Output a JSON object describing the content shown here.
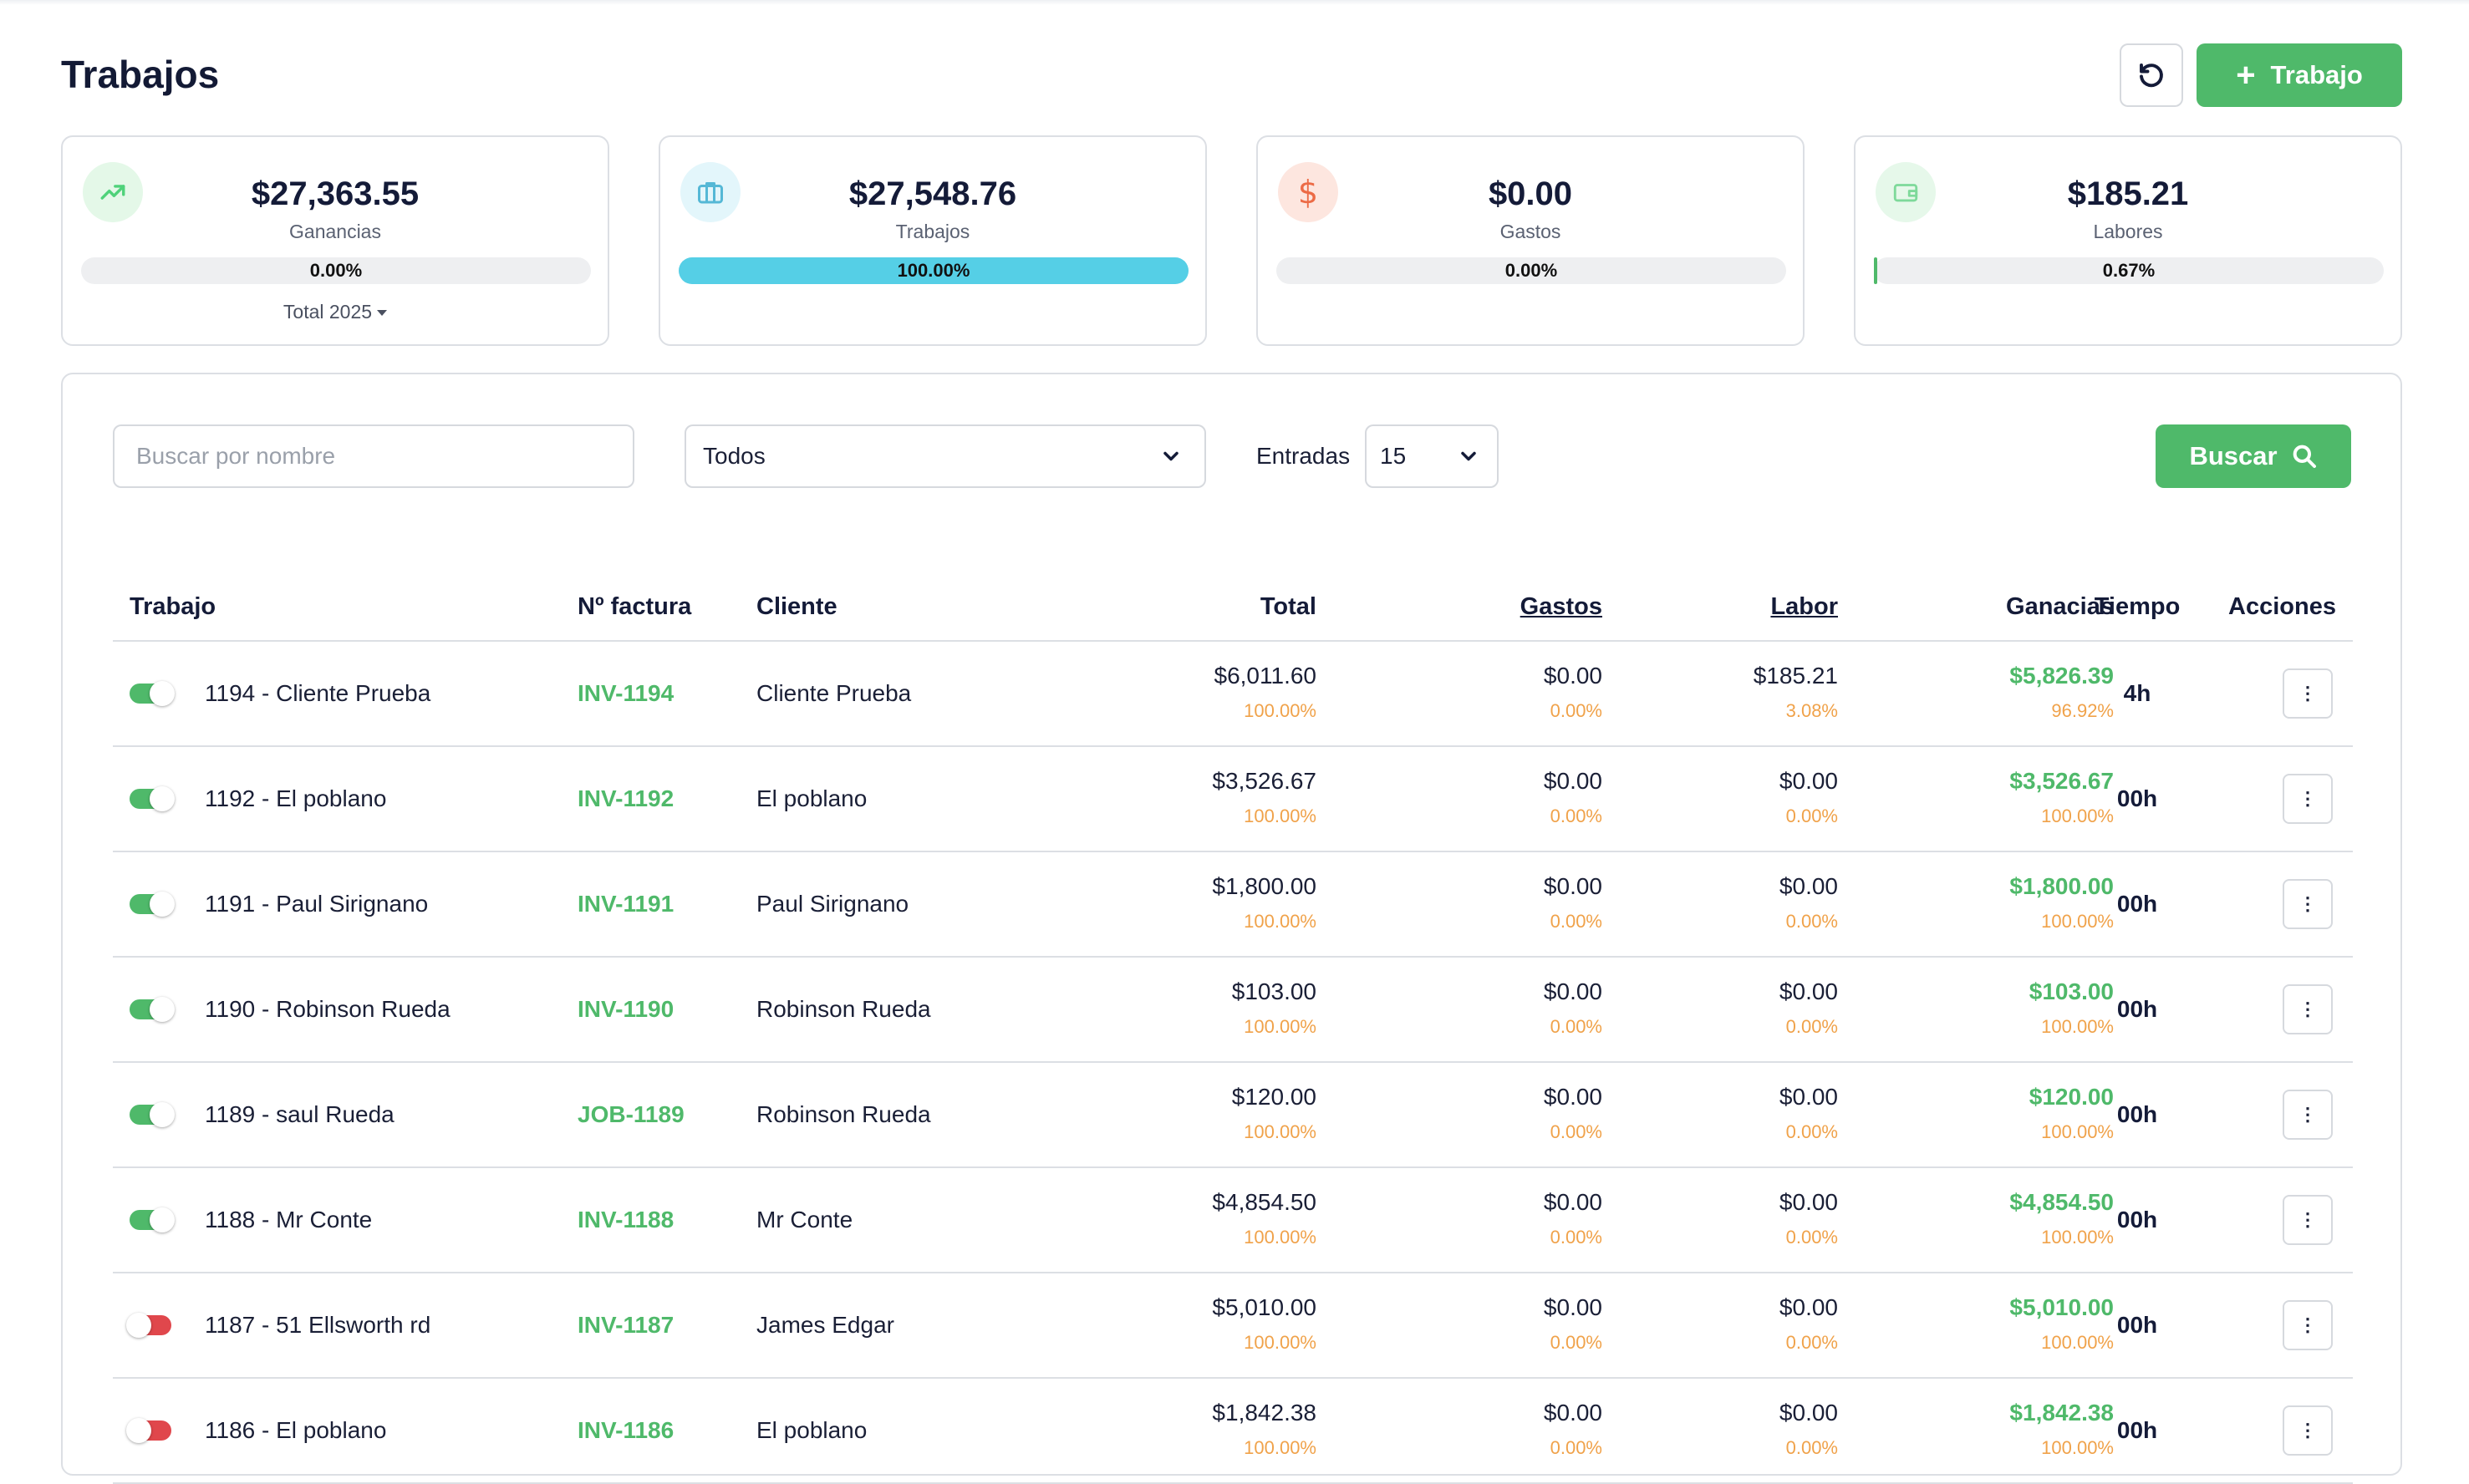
{
  "header": {
    "title": "Trabajos",
    "new_button_label": "Trabajo"
  },
  "colors": {
    "accent_green": "#4fb96a",
    "progress_cyan": "#55cfe6",
    "percent_orange": "#f0a24a",
    "toggle_off_red": "#e0474c"
  },
  "cards": [
    {
      "icon": "trending-up-icon",
      "value": "$27,363.55",
      "label": "Ganancias",
      "percent_text": "0.00%",
      "progress": 0.0,
      "period_label": "Total 2025"
    },
    {
      "icon": "briefcase-icon",
      "value": "$27,548.76",
      "label": "Trabajos",
      "percent_text": "100.00%",
      "progress": 1.0
    },
    {
      "icon": "dollar-icon",
      "value": "$0.00",
      "label": "Gastos",
      "percent_text": "0.00%",
      "progress": 0.0
    },
    {
      "icon": "wallet-icon",
      "value": "$185.21",
      "label": "Labores",
      "percent_text": "0.67%",
      "progress": 0.0067
    }
  ],
  "filters": {
    "search_placeholder": "Buscar por nombre",
    "status_selected": "Todos",
    "entries_label": "Entradas",
    "entries_selected": "15",
    "search_button_label": "Buscar"
  },
  "table": {
    "columns": {
      "trabajo": "Trabajo",
      "factura": "Nº factura",
      "cliente": "Cliente",
      "total": "Total",
      "gastos": "Gastos",
      "labor": "Labor",
      "ganancias": "Ganacias",
      "tiempo": "Tiempo",
      "acciones": "Acciones"
    },
    "rows": [
      {
        "active": true,
        "job": "1194 - Cliente Prueba",
        "invoice": "INV-1194",
        "client": "Cliente Prueba",
        "total": "$6,011.60",
        "total_pct": "100.00%",
        "gastos": "$0.00",
        "gastos_pct": "0.00%",
        "labor": "$185.21",
        "labor_pct": "3.08%",
        "ganancias": "$5,826.39",
        "ganancias_pct": "96.92%",
        "tiempo": "4h"
      },
      {
        "active": true,
        "job": "1192 - El poblano",
        "invoice": "INV-1192",
        "client": "El poblano",
        "total": "$3,526.67",
        "total_pct": "100.00%",
        "gastos": "$0.00",
        "gastos_pct": "0.00%",
        "labor": "$0.00",
        "labor_pct": "0.00%",
        "ganancias": "$3,526.67",
        "ganancias_pct": "100.00%",
        "tiempo": "00h"
      },
      {
        "active": true,
        "job": "1191 - Paul Sirignano",
        "invoice": "INV-1191",
        "client": "Paul Sirignano",
        "total": "$1,800.00",
        "total_pct": "100.00%",
        "gastos": "$0.00",
        "gastos_pct": "0.00%",
        "labor": "$0.00",
        "labor_pct": "0.00%",
        "ganancias": "$1,800.00",
        "ganancias_pct": "100.00%",
        "tiempo": "00h"
      },
      {
        "active": true,
        "job": "1190 - Robinson Rueda",
        "invoice": "INV-1190",
        "client": "Robinson Rueda",
        "total": "$103.00",
        "total_pct": "100.00%",
        "gastos": "$0.00",
        "gastos_pct": "0.00%",
        "labor": "$0.00",
        "labor_pct": "0.00%",
        "ganancias": "$103.00",
        "ganancias_pct": "100.00%",
        "tiempo": "00h"
      },
      {
        "active": true,
        "job": "1189 - saul Rueda",
        "invoice": "JOB-1189",
        "client": "Robinson Rueda",
        "total": "$120.00",
        "total_pct": "100.00%",
        "gastos": "$0.00",
        "gastos_pct": "0.00%",
        "labor": "$0.00",
        "labor_pct": "0.00%",
        "ganancias": "$120.00",
        "ganancias_pct": "100.00%",
        "tiempo": "00h"
      },
      {
        "active": true,
        "job": "1188 - Mr Conte",
        "invoice": "INV-1188",
        "client": "Mr Conte",
        "total": "$4,854.50",
        "total_pct": "100.00%",
        "gastos": "$0.00",
        "gastos_pct": "0.00%",
        "labor": "$0.00",
        "labor_pct": "0.00%",
        "ganancias": "$4,854.50",
        "ganancias_pct": "100.00%",
        "tiempo": "00h"
      },
      {
        "active": false,
        "job": "1187 - 51 Ellsworth rd",
        "invoice": "INV-1187",
        "client": "James Edgar",
        "total": "$5,010.00",
        "total_pct": "100.00%",
        "gastos": "$0.00",
        "gastos_pct": "0.00%",
        "labor": "$0.00",
        "labor_pct": "0.00%",
        "ganancias": "$5,010.00",
        "ganancias_pct": "100.00%",
        "tiempo": "00h"
      },
      {
        "active": false,
        "job": "1186 - El poblano",
        "invoice": "INV-1186",
        "client": "El poblano",
        "total": "$1,842.38",
        "total_pct": "100.00%",
        "gastos": "$0.00",
        "gastos_pct": "0.00%",
        "labor": "$0.00",
        "labor_pct": "0.00%",
        "ganancias": "$1,842.38",
        "ganancias_pct": "100.00%",
        "tiempo": "00h"
      }
    ]
  }
}
